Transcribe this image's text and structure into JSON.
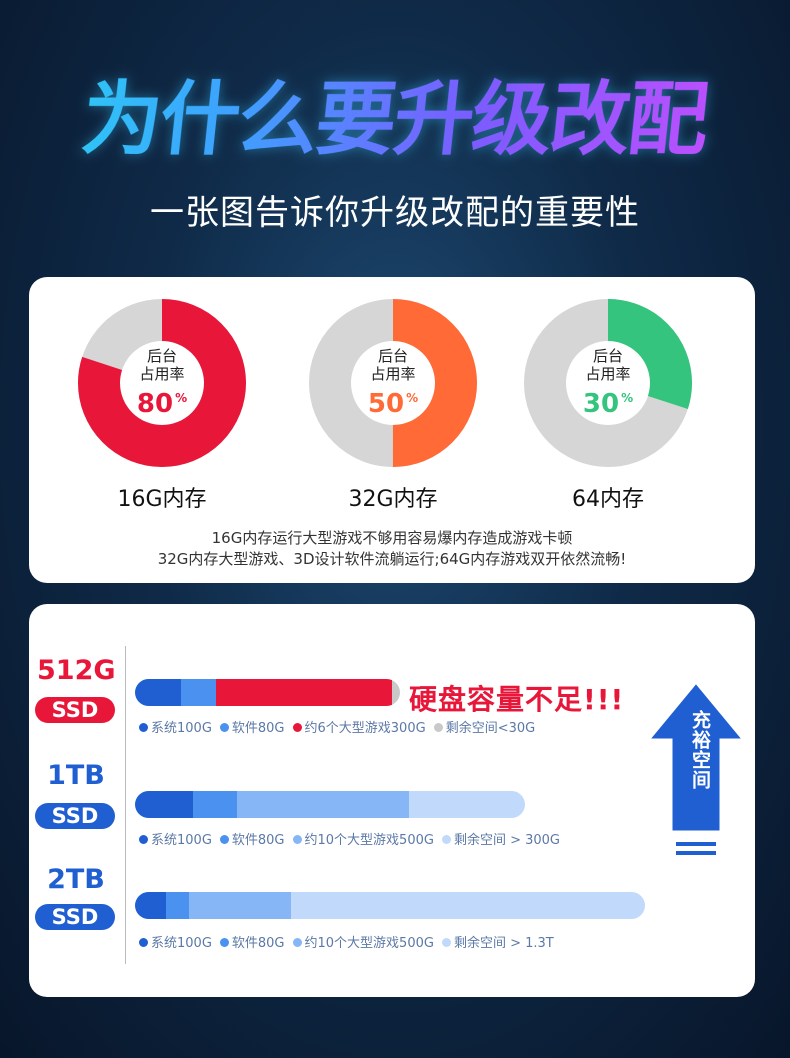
{
  "header": {
    "title": "为什么要升级改配",
    "subtitle": "一张图告诉你升级改配的重要性"
  },
  "ram_section": {
    "center_label_line1": "后台",
    "center_label_line2": "占用率",
    "percent_sign": "%",
    "items": [
      {
        "label": "16G内存",
        "percent": 80,
        "percent_text": "80",
        "color": "#e8173a"
      },
      {
        "label": "32G内存",
        "percent": 50,
        "percent_text": "50",
        "color": "#ff6a37"
      },
      {
        "label": "64内存",
        "percent": 30,
        "percent_text": "30",
        "color": "#34c47e"
      }
    ],
    "track_color": "#d6d6d6",
    "note_line1": "16G内存运行大型游戏不够用容易爆内存造成游戏卡顿",
    "note_line2": "32G内存大型游戏、3D设计软件流躺运行;64G内存游戏双开依然流畅!"
  },
  "ssd_section": {
    "arrow_text": "充裕空间",
    "warning": "硬盘容量不足!!!",
    "tiers": [
      {
        "capacity": "512G",
        "badge": "SSD",
        "accent": "#e8173a",
        "segments": [
          {
            "name": "系统",
            "fraction": 0.145,
            "color": "#1f5fd1"
          },
          {
            "name": "软件",
            "fraction": 0.11,
            "color": "#4b91ef"
          },
          {
            "name": "游戏",
            "fraction": 0.55,
            "color": "#e8173a"
          },
          {
            "name": "剩余",
            "fraction": 0.025,
            "color": "#c9c9c9"
          }
        ],
        "legend": [
          {
            "text": "系统100G",
            "color": "#1f5fd1"
          },
          {
            "text": "软件80G",
            "color": "#4b91ef"
          },
          {
            "text": "约6个大型游戏300G",
            "color": "#e8173a"
          },
          {
            "text": "剩余空间<30G",
            "color": "#c9c9c9"
          }
        ]
      },
      {
        "capacity": "1TB",
        "badge": "SSD",
        "accent": "#1f5fd1",
        "segments": [
          {
            "name": "系统",
            "fraction": 0.145,
            "color": "#1f5fd1"
          },
          {
            "name": "软件",
            "fraction": 0.11,
            "color": "#4b91ef"
          },
          {
            "name": "游戏",
            "fraction": 0.43,
            "color": "#86b6f5"
          },
          {
            "name": "剩余",
            "fraction": 0.29,
            "color": "#c1d9fa"
          }
        ],
        "legend": [
          {
            "text": "系统100G",
            "color": "#1f5fd1"
          },
          {
            "text": "软件80G",
            "color": "#4b91ef"
          },
          {
            "text": "约10个大型游戏500G",
            "color": "#86b6f5"
          },
          {
            "text": "剩余空间 > 300G",
            "color": "#c1d9fa"
          }
        ]
      },
      {
        "capacity": "2TB",
        "badge": "SSD",
        "accent": "#1f5fd1",
        "segments": [
          {
            "name": "系统",
            "fraction": 0.06,
            "color": "#1f5fd1"
          },
          {
            "name": "软件",
            "fraction": 0.045,
            "color": "#4b91ef"
          },
          {
            "name": "游戏",
            "fraction": 0.2,
            "color": "#86b6f5"
          },
          {
            "name": "剩余",
            "fraction": 0.695,
            "color": "#c1d9fa"
          }
        ],
        "legend": [
          {
            "text": "系统100G",
            "color": "#1f5fd1"
          },
          {
            "text": "软件80G",
            "color": "#4b91ef"
          },
          {
            "text": "约10个大型游戏500G",
            "color": "#86b6f5"
          },
          {
            "text": "剩余空间 > 1.3T",
            "color": "#c1d9fa"
          }
        ]
      }
    ]
  }
}
